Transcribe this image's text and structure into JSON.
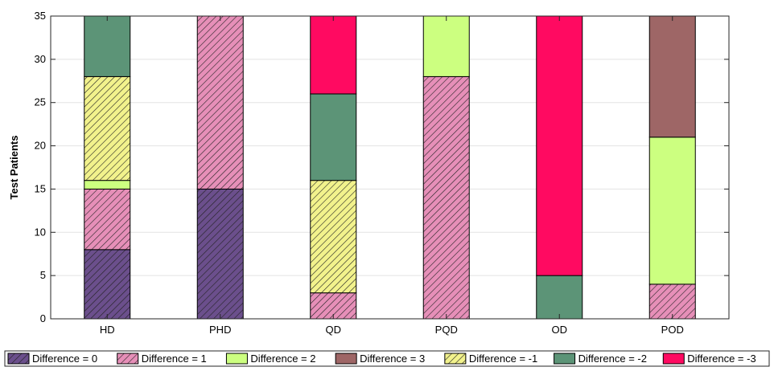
{
  "chart_data": {
    "type": "bar",
    "stacked": true,
    "title": "",
    "xlabel": "",
    "ylabel": "Test Patients",
    "ylim": [
      0,
      35
    ],
    "yticks": [
      0,
      5,
      10,
      15,
      20,
      25,
      30,
      35
    ],
    "grid": true,
    "legend_position": "bottom",
    "categories": [
      "HD",
      "PHD",
      "QD",
      "PQD",
      "OD",
      "POD"
    ],
    "series": [
      {
        "name": "Difference = 0",
        "color": "#6b4f8c",
        "hatched": true,
        "values": [
          8,
          15,
          0,
          0,
          0,
          0
        ]
      },
      {
        "name": "Difference = 1",
        "color": "#e68fb8",
        "hatched": true,
        "values": [
          7,
          20,
          3,
          28,
          0,
          4
        ]
      },
      {
        "name": "Difference = 2",
        "color": "#ccff80",
        "hatched": false,
        "values": [
          1,
          0,
          0,
          7,
          0,
          17
        ]
      },
      {
        "name": "Difference = 3",
        "color": "#9e6666",
        "hatched": false,
        "values": [
          0,
          0,
          0,
          0,
          0,
          14
        ]
      },
      {
        "name": "Difference = -1",
        "color": "#f2f28c",
        "hatched": true,
        "values": [
          12,
          0,
          13,
          0,
          0,
          0
        ]
      },
      {
        "name": "Difference = -2",
        "color": "#5c9477",
        "hatched": false,
        "values": [
          7,
          0,
          10,
          0,
          5,
          0
        ]
      },
      {
        "name": "Difference = -3",
        "color": "#ff0a61",
        "hatched": false,
        "values": [
          0,
          0,
          9,
          0,
          30,
          0
        ]
      }
    ]
  }
}
